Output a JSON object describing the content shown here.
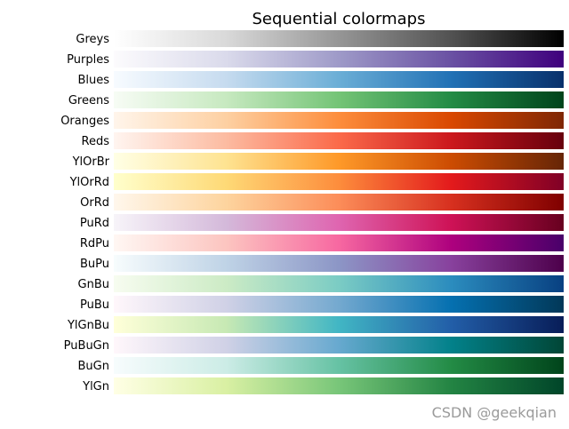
{
  "chart_data": {
    "type": "heatmap",
    "title": "Sequential colormaps",
    "xlabel": "",
    "ylabel": "",
    "grid": false,
    "colormaps": [
      {
        "name": "Greys",
        "stops": [
          "#ffffff",
          "#d9d9d9",
          "#969696",
          "#525252",
          "#000000"
        ]
      },
      {
        "name": "Purples",
        "stops": [
          "#fcfbfd",
          "#dadaeb",
          "#9e9ac8",
          "#6a51a3",
          "#3f007d"
        ]
      },
      {
        "name": "Blues",
        "stops": [
          "#f7fbff",
          "#c6dbef",
          "#6baed6",
          "#2171b5",
          "#08306b"
        ]
      },
      {
        "name": "Greens",
        "stops": [
          "#f7fcf5",
          "#c7e9c0",
          "#74c476",
          "#238b45",
          "#00441b"
        ]
      },
      {
        "name": "Oranges",
        "stops": [
          "#fff5eb",
          "#fdd0a2",
          "#fd8d3c",
          "#d94801",
          "#7f2704"
        ]
      },
      {
        "name": "Reds",
        "stops": [
          "#fff5f0",
          "#fcbba1",
          "#fb6a4a",
          "#cb181d",
          "#67000d"
        ]
      },
      {
        "name": "YlOrBr",
        "stops": [
          "#ffffe5",
          "#fee391",
          "#fe9929",
          "#cc4c02",
          "#662506"
        ]
      },
      {
        "name": "YlOrRd",
        "stops": [
          "#ffffcc",
          "#fed976",
          "#fd8d3c",
          "#e31a1c",
          "#800026"
        ]
      },
      {
        "name": "OrRd",
        "stops": [
          "#fff7ec",
          "#fdd49e",
          "#fc8d59",
          "#d7301f",
          "#7f0000"
        ]
      },
      {
        "name": "PuRd",
        "stops": [
          "#f7f4f9",
          "#d4b9da",
          "#df65b0",
          "#ce1256",
          "#67001f"
        ]
      },
      {
        "name": "RdPu",
        "stops": [
          "#fff7f3",
          "#fcc5c0",
          "#f768a1",
          "#ae017e",
          "#49006a"
        ]
      },
      {
        "name": "BuPu",
        "stops": [
          "#f7fcfd",
          "#bfd3e6",
          "#8c96c6",
          "#88419d",
          "#4d004b"
        ]
      },
      {
        "name": "GnBu",
        "stops": [
          "#f7fcf0",
          "#ccebc5",
          "#7bccc4",
          "#2b8cbe",
          "#084081"
        ]
      },
      {
        "name": "PuBu",
        "stops": [
          "#fff7fb",
          "#d0d1e6",
          "#74a9cf",
          "#0570b0",
          "#023858"
        ]
      },
      {
        "name": "YlGnBu",
        "stops": [
          "#ffffd9",
          "#c7e9b4",
          "#41b6c4",
          "#225ea8",
          "#081d58"
        ]
      },
      {
        "name": "PuBuGn",
        "stops": [
          "#fff7fb",
          "#d0d1e6",
          "#67a9cf",
          "#02818a",
          "#014636"
        ]
      },
      {
        "name": "BuGn",
        "stops": [
          "#f7fcfd",
          "#ccece6",
          "#66c2a4",
          "#238b45",
          "#00441b"
        ]
      },
      {
        "name": "YlGn",
        "stops": [
          "#ffffe5",
          "#d9f0a3",
          "#78c679",
          "#238443",
          "#004529"
        ]
      }
    ]
  },
  "watermark": "CSDN @geekqian"
}
